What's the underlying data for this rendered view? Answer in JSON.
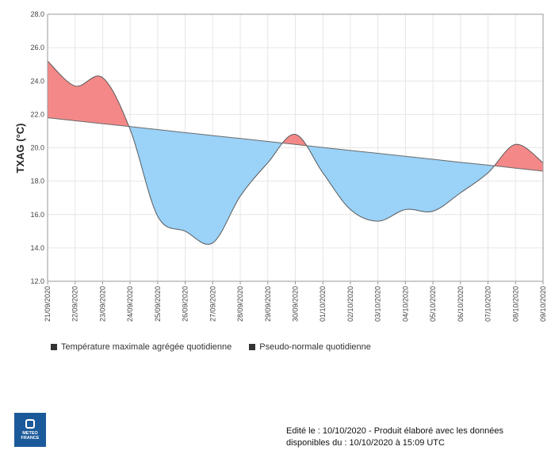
{
  "chart_data": {
    "type": "area",
    "ylabel": "TXAG (°C)",
    "ylim": [
      12.0,
      28.0
    ],
    "y_ticks": [
      "12.0",
      "14.0",
      "16.0",
      "18.0",
      "20.0",
      "22.0",
      "24.0",
      "26.0",
      "28.0"
    ],
    "categories": [
      "21/09/2020",
      "22/09/2020",
      "23/09/2020",
      "24/09/2020",
      "25/09/2020",
      "26/09/2020",
      "27/09/2020",
      "28/09/2020",
      "29/09/2020",
      "30/09/2020",
      "01/10/2020",
      "02/10/2020",
      "03/10/2020",
      "04/10/2020",
      "05/10/2020",
      "06/10/2020",
      "07/10/2020",
      "08/10/2020",
      "09/10/2020"
    ],
    "series": [
      {
        "name": "Température maximale agrégée quotidienne",
        "values": [
          25.2,
          23.7,
          24.2,
          21.1,
          15.9,
          15.0,
          14.3,
          17.1,
          19.1,
          20.8,
          18.5,
          16.3,
          15.6,
          16.3,
          16.2,
          17.3,
          18.5,
          20.2,
          19.1
        ]
      },
      {
        "name": "Pseudo-normale quotidienne",
        "values": [
          21.8,
          21.62,
          21.44,
          21.27,
          21.09,
          20.91,
          20.73,
          20.56,
          20.38,
          20.2,
          20.02,
          19.84,
          19.67,
          19.49,
          19.31,
          19.13,
          18.96,
          18.78,
          18.6
        ]
      }
    ],
    "colors": {
      "above": "#f48888",
      "below": "#9ad2f8",
      "line": "#5a5a5a",
      "normal": "#6a6a6a"
    },
    "grid": true,
    "legend_position": "bottom-left"
  },
  "legend": {
    "items": [
      "Température maximale agrégée quotidienne",
      "Pseudo-normale quotidienne"
    ]
  },
  "logo": {
    "line1": "METEO",
    "line2": "FRANCE"
  },
  "footer": {
    "line1": "Edité le : 10/10/2020 - Produit élaboré avec les données",
    "line2": "disponibles du : 10/10/2020 à 15:09 UTC"
  }
}
